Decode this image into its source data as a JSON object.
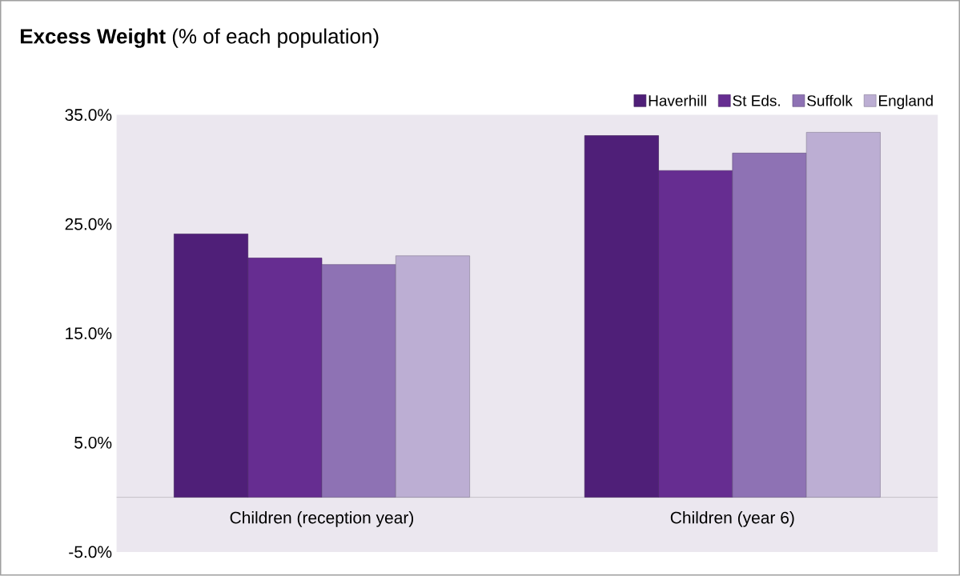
{
  "chart_data": {
    "type": "bar",
    "title": "**Excess Weight** (% of each population)",
    "categories": [
      "Children (reception year)",
      "Children (year 6)"
    ],
    "series": [
      {
        "name": "Haverhill",
        "color": "#4f1f78",
        "values": [
          24.1,
          33.1
        ]
      },
      {
        "name": "St Eds.",
        "color": "#662d91",
        "values": [
          21.9,
          29.9
        ]
      },
      {
        "name": "Suffolk",
        "color": "#8e72b4",
        "values": [
          21.3,
          31.5
        ]
      },
      {
        "name": "England",
        "color": "#bcaed3",
        "values": [
          22.1,
          33.4
        ]
      }
    ],
    "ylim": [
      -5,
      35
    ],
    "yticks": [
      {
        "value": -5,
        "label": "-5.0%"
      },
      {
        "value": 5,
        "label": "5.0%"
      },
      {
        "value": 15,
        "label": "15.0%"
      },
      {
        "value": 25,
        "label": "25.0%"
      },
      {
        "value": 35,
        "label": "35.0%"
      }
    ],
    "legend": "top right",
    "grid": false
  }
}
